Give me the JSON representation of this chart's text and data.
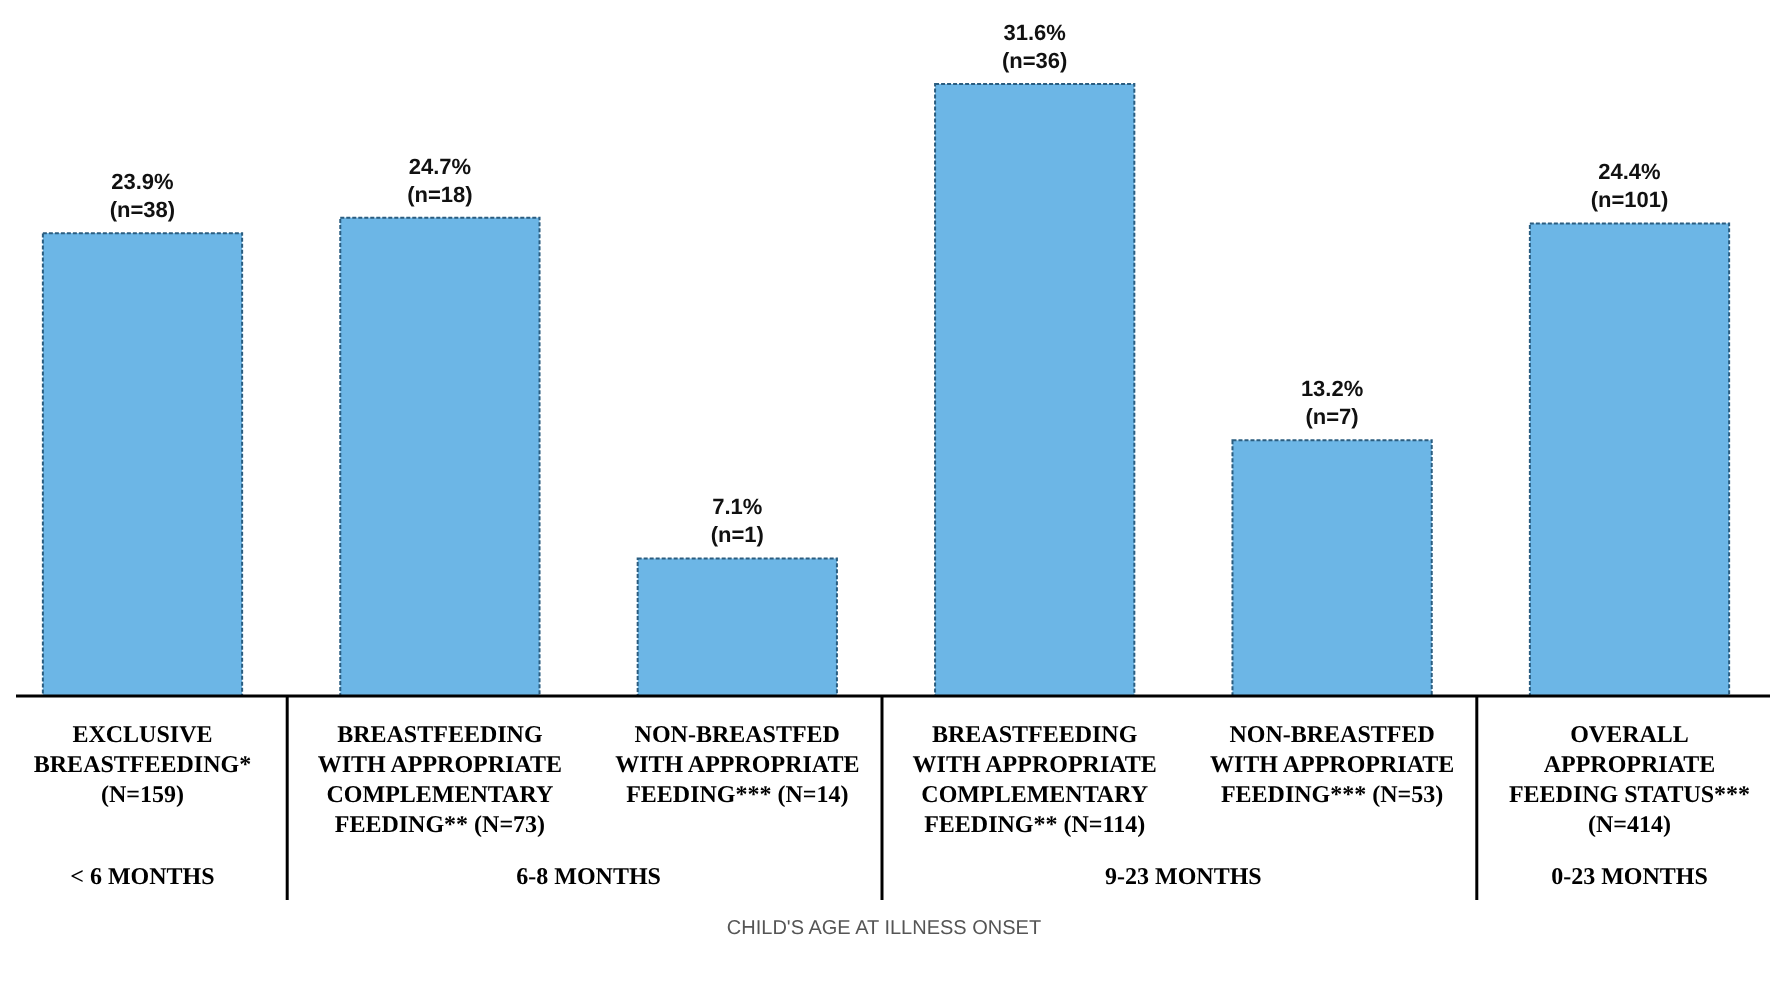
{
  "chart_data": {
    "type": "bar",
    "relative": false,
    "categories": [
      "EXCLUSIVE\nBREASTFEEDING*\n(N=159)",
      "BREASTFEEDING\nWITH APPROPRIATE\nCOMPLEMENTARY\nFEEDING** (N=73)",
      "NON-BREASTFED\nWITH APPROPRIATE\nFEEDING*** (N=14)",
      "BREASTFEEDING\nWITH APPROPRIATE\nCOMPLEMENTARY\nFEEDING**  (N=114)",
      "NON-BREASTFED\nWITH APPROPRIATE\nFEEDING*** (N=53)",
      "OVERALL\nAPPROPRIATE\nFEEDING STATUS***\n(N=414)"
    ],
    "values": [
      23.9,
      24.7,
      7.1,
      31.6,
      13.2,
      24.4
    ],
    "value_labels": [
      "23.9%\n(n=38)",
      "24.7%\n(n=18)",
      "7.1%\n(n=1)",
      "31.6%\n(n=36)",
      "13.2%\n(n=7)",
      "24.4%\n(n=101)"
    ],
    "color": "#6cb6e6",
    "xlabel": "CHILD'S AGE AT ILLNESS ONSET",
    "annotations": [
      "< 6 MONTHS",
      "6-8 MONTHS",
      "9-23 MONTHS",
      "0-23 MONTHS"
    ]
  }
}
